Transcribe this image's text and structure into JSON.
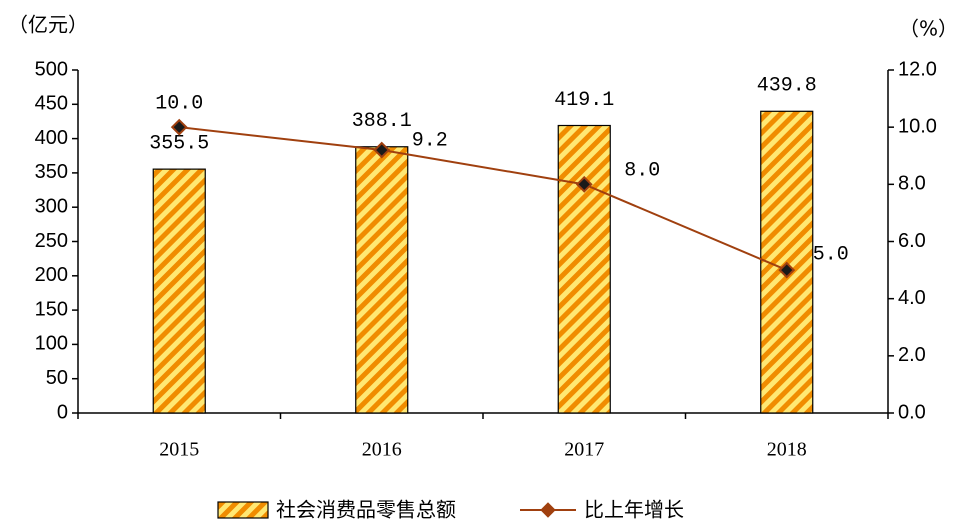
{
  "chart_data": {
    "type": "bar-line",
    "y_unit": "（亿元）",
    "y2_unit": "（%）",
    "categories": [
      "2015",
      "2016",
      "2017",
      "2018"
    ],
    "series": [
      {
        "name": "社会消费品零售总额",
        "type": "bar",
        "color": "#f08c00",
        "values": [
          355.5,
          388.1,
          419.1,
          439.8
        ]
      },
      {
        "name": "比上年增长",
        "type": "line",
        "axis": "y2",
        "color": "#a0400f",
        "values": [
          10.0,
          9.2,
          8.0,
          5.0
        ],
        "value_labels": [
          "10.0",
          "9.2",
          "8.0",
          "5.0"
        ]
      }
    ],
    "ylim": [
      0,
      500
    ],
    "yticks": [
      0,
      50,
      100,
      150,
      200,
      250,
      300,
      350,
      400,
      450,
      500
    ],
    "y2lim": [
      0,
      12
    ],
    "y2ticks": [
      {
        "value": 0,
        "label": "0.0"
      },
      {
        "value": 2,
        "label": "2.0"
      },
      {
        "value": 4,
        "label": "4.0"
      },
      {
        "value": 6,
        "label": "6.0"
      },
      {
        "value": 8,
        "label": "8.0"
      },
      {
        "value": 10,
        "label": "10.0"
      },
      {
        "value": 12,
        "label": "12.0"
      }
    ]
  }
}
